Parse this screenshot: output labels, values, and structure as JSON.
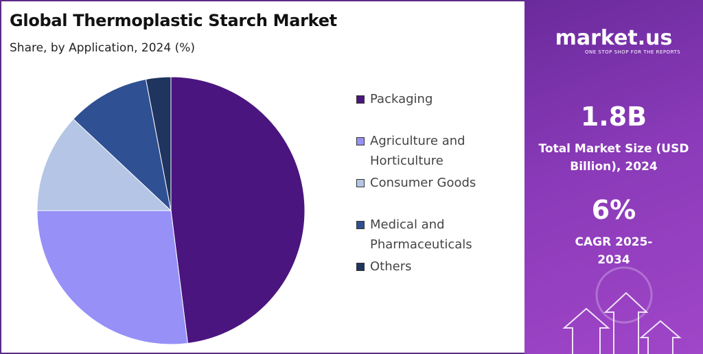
{
  "chart_data": {
    "type": "pie",
    "title": "Global Thermoplastic Starch Market",
    "subtitle": "Share, by Application, 2024 (%)",
    "categories": [
      "Packaging",
      "Agriculture and Horticulture",
      "Consumer Goods",
      "Medical and Pharmaceuticals",
      "Others"
    ],
    "values": [
      48,
      27,
      12,
      10,
      3
    ],
    "colors": [
      "#4b1580",
      "#9690f7",
      "#b4c5e5",
      "#2f5092",
      "#1f345f"
    ]
  },
  "sidebar": {
    "brand": "market.us",
    "tagline": "ONE STOP SHOP FOR THE REPORTS",
    "market_size": "1.8B",
    "market_size_label": "Total Market Size (USD Billion), 2024",
    "cagr": "6%",
    "cagr_label": "CAGR 2025-2034"
  }
}
